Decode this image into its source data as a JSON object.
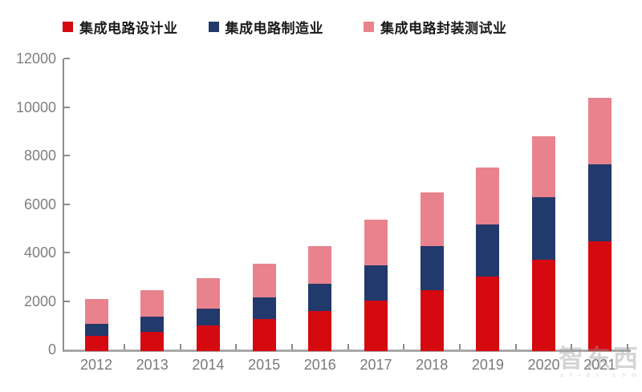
{
  "chart_data": {
    "type": "bar",
    "stacked": true,
    "title": "",
    "xlabel": "",
    "ylabel": "",
    "ylim": [
      0,
      12000
    ],
    "yticks": [
      0,
      2000,
      4000,
      6000,
      8000,
      10000,
      12000
    ],
    "grid": false,
    "legend_position": "top",
    "categories": [
      "2012",
      "2013",
      "2014",
      "2015",
      "2016",
      "2017",
      "2018",
      "2019",
      "2020",
      "2021"
    ],
    "series": [
      {
        "name": "集成电路设计业",
        "color": "#D40A10",
        "values": [
          621.7,
          808.8,
          1047.4,
          1325.0,
          1644.3,
          2073.5,
          2519.3,
          3063.5,
          3778.4,
          4519.0
        ]
      },
      {
        "name": "集成电路制造业",
        "color": "#22396B",
        "values": [
          503.2,
          600.9,
          712.1,
          900.8,
          1126.9,
          1448.1,
          1818.2,
          2149.1,
          2560.1,
          3176.3
        ]
      },
      {
        "name": "集成电路封装测试业",
        "color": "#E8838D",
        "values": [
          1035.7,
          1098.8,
          1255.9,
          1384.0,
          1564.3,
          1889.7,
          2193.9,
          2349.7,
          2509.5,
          2763.0
        ]
      }
    ]
  },
  "watermark": {
    "text": "智东西",
    "subtext": "z h i d x . c o m"
  },
  "colors": {
    "axis_x": "#A8A8A8",
    "axis_y": "#8C8C8C",
    "tick_label": "#7F7F7F",
    "legend_text": "#1A1A1A",
    "background": "#FFFFFF"
  }
}
